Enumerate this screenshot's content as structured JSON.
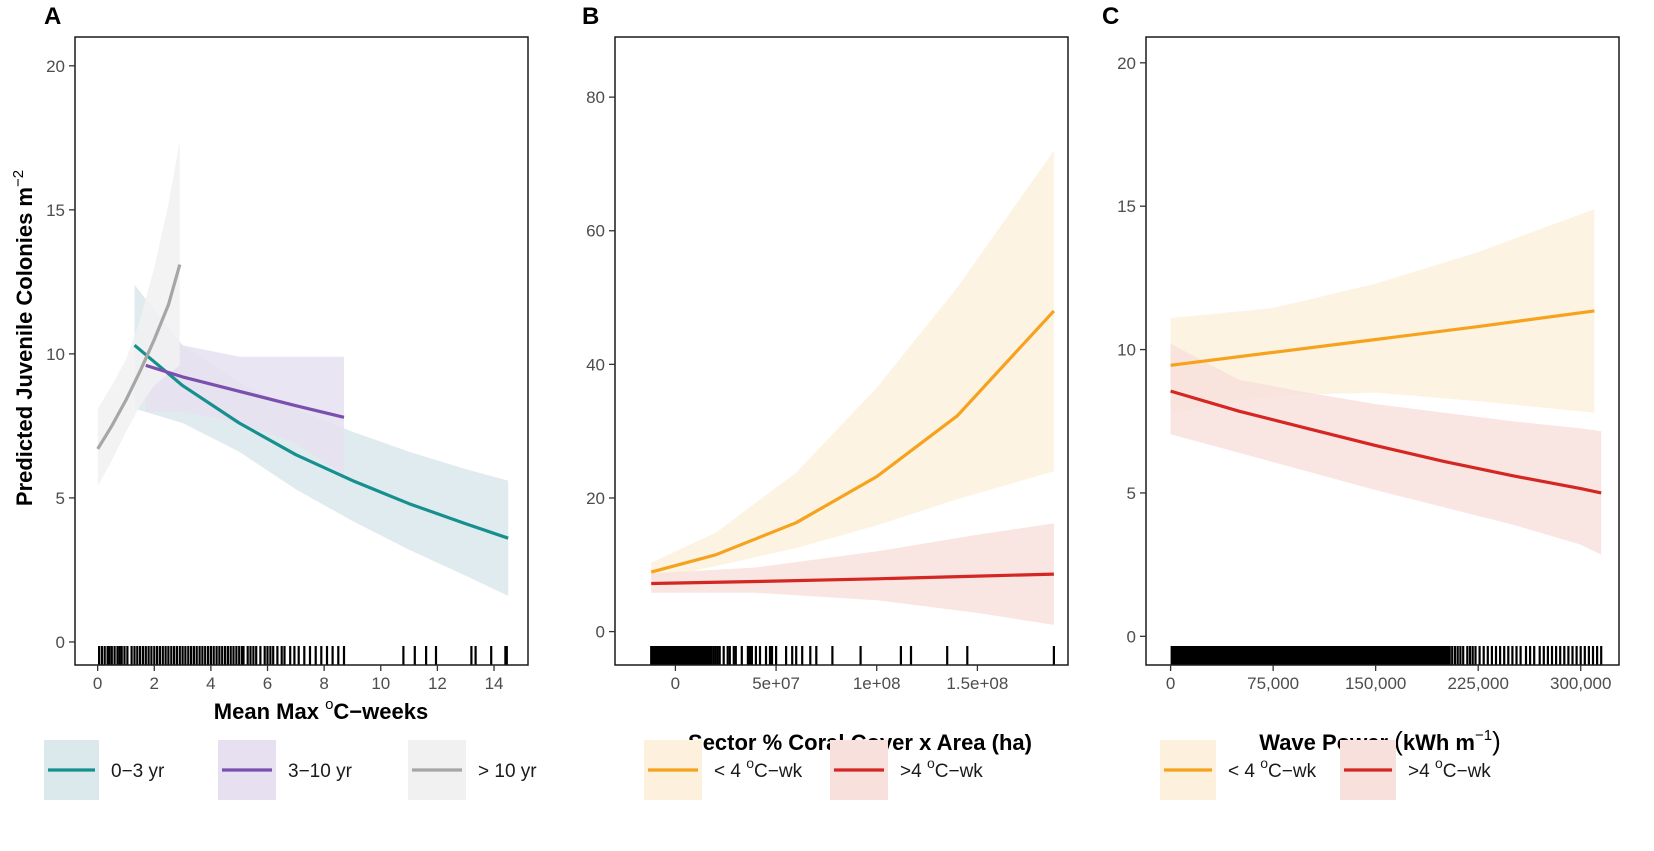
{
  "ylabel_shared": "Predicted Juvenile Colonies m",
  "ylabel_superscript": "−2",
  "chart_data": [
    {
      "panel": "A",
      "type": "line",
      "xlabel": "Mean Max",
      "xlabel_sup": "o",
      "xlabel_suffix": "C−weeks",
      "xlim": [
        -0.8,
        15.2
      ],
      "ylim": [
        -0.8,
        21.0
      ],
      "xticks": [
        0,
        2,
        4,
        6,
        8,
        10,
        12,
        14
      ],
      "xtick_labels": [
        "0",
        "2",
        "4",
        "6",
        "8",
        "10",
        "12",
        "14"
      ],
      "yticks": [
        0,
        5,
        10,
        15,
        20
      ],
      "ytick_labels": [
        "0",
        "5",
        "10",
        "15",
        "20"
      ],
      "series": [
        {
          "name": "0−3 yr",
          "color": "#16908f",
          "band_color": "#dbe8ec",
          "x": [
            1.3,
            3,
            5,
            7,
            9,
            11,
            13,
            14.5
          ],
          "y": [
            10.3,
            8.9,
            7.6,
            6.5,
            5.6,
            4.8,
            4.1,
            3.6
          ],
          "lower": [
            8.1,
            7.6,
            6.6,
            5.3,
            4.2,
            3.2,
            2.3,
            1.6
          ],
          "upper": [
            12.4,
            10.3,
            9.0,
            8.1,
            7.3,
            6.6,
            6.0,
            5.6
          ]
        },
        {
          "name": "3−10 yr",
          "color": "#7a4fae",
          "band_color": "#e6e0f0",
          "x": [
            1.7,
            3,
            5,
            7,
            8.7
          ],
          "y": [
            9.6,
            9.2,
            8.7,
            8.2,
            7.8
          ],
          "lower": [
            8.0,
            8.0,
            7.6,
            6.9,
            5.8
          ],
          "upper": [
            11.2,
            10.3,
            9.9,
            9.9,
            9.9
          ]
        },
        {
          "name": "> 10 yr",
          "color": "#a6a6a6",
          "band_color": "#f1f1f1",
          "x": [
            0,
            0.5,
            1,
            1.5,
            2,
            2.5,
            2.9
          ],
          "y": [
            6.7,
            7.5,
            8.4,
            9.4,
            10.5,
            11.7,
            13.1
          ],
          "lower": [
            5.4,
            6.3,
            7.3,
            8.2,
            8.9,
            9.3,
            9.6
          ],
          "upper": [
            8.1,
            8.9,
            9.8,
            11.2,
            13.0,
            15.2,
            17.4
          ]
        }
      ],
      "rug": [
        0.05,
        0.15,
        0.25,
        0.35,
        0.42,
        0.5,
        0.6,
        0.7,
        0.78,
        0.85,
        0.95,
        1.05,
        1.2,
        1.3,
        1.4,
        1.5,
        1.6,
        1.7,
        1.8,
        1.9,
        2.0,
        2.1,
        2.2,
        2.3,
        2.4,
        2.5,
        2.6,
        2.7,
        2.8,
        2.9,
        3.0,
        3.1,
        3.2,
        3.3,
        3.4,
        3.5,
        3.6,
        3.7,
        3.8,
        3.9,
        4.0,
        4.1,
        4.2,
        4.3,
        4.4,
        4.5,
        4.6,
        4.7,
        4.8,
        4.9,
        5.0,
        5.1,
        5.15,
        5.3,
        5.4,
        5.5,
        5.6,
        5.75,
        5.9,
        6.0,
        6.1,
        6.2,
        6.35,
        6.5,
        6.6,
        6.8,
        6.95,
        7.1,
        7.3,
        7.5,
        7.7,
        7.9,
        8.1,
        8.3,
        8.5,
        8.7,
        10.8,
        11.2,
        11.6,
        11.95,
        13.2,
        13.35,
        13.9,
        14.4,
        14.45
      ]
    },
    {
      "panel": "B",
      "type": "line",
      "xlabel": "Sector % Coral Cover x Area (ha)",
      "xlim": [
        -30000000,
        195000000
      ],
      "ylim": [
        -5,
        89
      ],
      "xticks": [
        0,
        50000000,
        100000000,
        150000000
      ],
      "xtick_labels": [
        "0",
        "5e+07",
        "1e+08",
        "1.5e+08"
      ],
      "yticks": [
        0,
        20,
        40,
        60,
        80
      ],
      "ytick_labels": [
        "0",
        "20",
        "40",
        "60",
        "80"
      ],
      "series": [
        {
          "name": "< 4 °C−wk",
          "label_prefix": "< 4 ",
          "label_sup": "o",
          "label_suffix": "C−wk",
          "color": "#f6a21d",
          "band_color": "#fdf1dd",
          "x": [
            -12000000,
            20000000,
            60000000,
            100000000,
            140000000,
            188000000
          ],
          "y": [
            8.9,
            11.5,
            16.3,
            23.2,
            32.3,
            48.0
          ],
          "lower": [
            7.8,
            9.8,
            12.5,
            15.9,
            19.8,
            24.0
          ],
          "upper": [
            10.3,
            14.8,
            23.8,
            36.5,
            51.5,
            72.0
          ]
        },
        {
          "name": "> 4 °C−wk",
          "label_prefix": ">4 ",
          "label_sup": "o",
          "label_suffix": "C−wk",
          "color": "#d42724",
          "band_color": "#f8e1dc",
          "x": [
            -12000000,
            40000000,
            100000000,
            150000000,
            188000000
          ],
          "y": [
            7.2,
            7.5,
            7.9,
            8.3,
            8.6
          ],
          "lower": [
            5.8,
            5.8,
            4.7,
            2.8,
            1.0
          ],
          "upper": [
            8.7,
            9.6,
            12.0,
            14.5,
            16.2
          ]
        }
      ],
      "rug": [
        -12000000,
        -11500000,
        -11000000,
        -10500000,
        -10000000,
        -9500000,
        -9000000,
        -8500000,
        -8000000,
        -7500000,
        -7000000,
        -6500000,
        -6000000,
        -5500000,
        -5000000,
        -4500000,
        -4000000,
        -3500000,
        -3000000,
        -2500000,
        -2000000,
        -1500000,
        -1000000,
        -500000,
        0,
        500000,
        1000000,
        1500000,
        2000000,
        2500000,
        3000000,
        3500000,
        4000000,
        4500000,
        5000000,
        5500000,
        6000000,
        6500000,
        7000000,
        7500000,
        8000000,
        8500000,
        9000000,
        9500000,
        10000000,
        10500000,
        11000000,
        11500000,
        12000000,
        13000000,
        14000000,
        15000000,
        16000000,
        17000000,
        18000000,
        19000000,
        20000000,
        21000000,
        22000000,
        24000000,
        26000000,
        27000000,
        29000000,
        30000000,
        33000000,
        36000000,
        37000000,
        38000000,
        40000000,
        42000000,
        45000000,
        47000000,
        48000000,
        50000000,
        55000000,
        58000000,
        60000000,
        63000000,
        67000000,
        70000000,
        78000000,
        92000000,
        112000000,
        117000000,
        135000000,
        145000000,
        188000000
      ]
    },
    {
      "panel": "C",
      "type": "line",
      "xlabel": "Wave Power",
      "xlabel_unit_prefix": "kWh m",
      "xlabel_unit_sup": "−1",
      "xlim": [
        -18000,
        328000
      ],
      "ylim": [
        -1.0,
        20.9
      ],
      "xticks": [
        0,
        75000,
        150000,
        225000,
        300000
      ],
      "xtick_labels": [
        "0",
        "75,000",
        "150,000",
        "225,000",
        "300,000"
      ],
      "yticks": [
        0,
        5,
        10,
        15,
        20
      ],
      "ytick_labels": [
        "0",
        "5",
        "10",
        "15",
        "20"
      ],
      "series": [
        {
          "name": "< 4 °C−wk",
          "label_prefix": "< 4 ",
          "label_sup": "o",
          "label_suffix": "C−wk",
          "color": "#f6a21d",
          "band_color": "#fdf1dd",
          "x": [
            0,
            75000,
            150000,
            225000,
            310000
          ],
          "y": [
            9.45,
            9.9,
            10.35,
            10.8,
            11.35
          ],
          "lower": [
            7.8,
            8.4,
            8.5,
            8.2,
            7.8
          ],
          "upper": [
            11.1,
            11.45,
            12.3,
            13.4,
            14.9
          ]
        },
        {
          "name": "> 4 °C−wk",
          "label_prefix": ">4 ",
          "label_sup": "o",
          "label_suffix": "C−wk",
          "color": "#d42724",
          "band_color": "#f8e1dc",
          "x": [
            0,
            50000,
            100000,
            150000,
            200000,
            250000,
            300000,
            315000
          ],
          "y": [
            8.55,
            7.85,
            7.25,
            6.65,
            6.1,
            5.6,
            5.15,
            5.0
          ],
          "lower": [
            7.05,
            6.4,
            5.75,
            5.1,
            4.5,
            3.9,
            3.2,
            2.85
          ],
          "upper": [
            10.2,
            8.95,
            8.5,
            8.1,
            7.8,
            7.5,
            7.25,
            7.15
          ]
        }
      ],
      "rug_ranges": [
        [
          0,
          205000
        ]
      ],
      "rug": [
        206000,
        208000,
        210000,
        212000,
        214000,
        217000,
        219000,
        221000,
        223000,
        226000,
        229000,
        232000,
        235000,
        238000,
        241000,
        244000,
        247000,
        250000,
        253000,
        256000,
        260000,
        263000,
        266000,
        270000,
        273000,
        276000,
        279000,
        282000,
        285000,
        288000,
        291000,
        294000,
        297000,
        300000,
        303000,
        306000,
        309000,
        312000,
        315000
      ]
    }
  ]
}
